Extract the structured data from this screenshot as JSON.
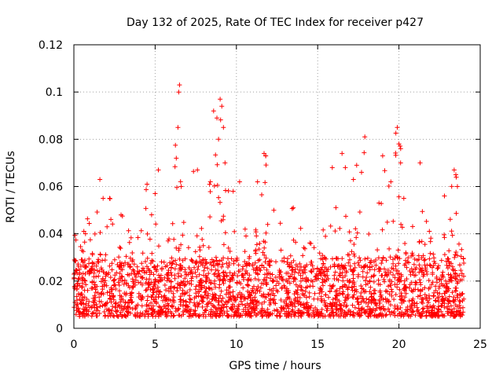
{
  "chart_data": {
    "type": "scatter",
    "title": "Day 132 of 2025, Rate Of TEC Index for receiver p427",
    "xlabel": "GPS time / hours",
    "ylabel": "ROTI / TECUs",
    "xlim": [
      0,
      25
    ],
    "ylim": [
      0,
      0.12
    ],
    "x_ticks": [
      0,
      5,
      10,
      15,
      20,
      25
    ],
    "y_ticks": [
      0,
      0.02,
      0.04,
      0.06,
      0.08,
      0.1,
      0.12
    ],
    "x_tick_labels": [
      "0",
      "5",
      "10",
      "15",
      "20",
      "25"
    ],
    "y_tick_labels": [
      "0",
      "0.02",
      "0.04",
      "0.06",
      "0.08",
      "0.1",
      "0.12"
    ],
    "grid": true,
    "marker": "+",
    "color": "#ff0000",
    "data_span_hours": [
      0,
      24
    ],
    "typical_range": [
      0.005,
      0.03
    ],
    "series": [
      {
        "name": "ROTI",
        "notable_points": [
          {
            "x": 0.5,
            "y": 0.033
          },
          {
            "x": 1.6,
            "y": 0.063
          },
          {
            "x": 1.8,
            "y": 0.055
          },
          {
            "x": 2.2,
            "y": 0.055
          },
          {
            "x": 2.9,
            "y": 0.048
          },
          {
            "x": 4.5,
            "y": 0.061
          },
          {
            "x": 5.0,
            "y": 0.057
          },
          {
            "x": 5.2,
            "y": 0.067
          },
          {
            "x": 6.3,
            "y": 0.072
          },
          {
            "x": 6.4,
            "y": 0.085
          },
          {
            "x": 6.45,
            "y": 0.1
          },
          {
            "x": 6.5,
            "y": 0.103
          },
          {
            "x": 6.6,
            "y": 0.06
          },
          {
            "x": 7.6,
            "y": 0.067
          },
          {
            "x": 8.4,
            "y": 0.062
          },
          {
            "x": 8.6,
            "y": 0.092
          },
          {
            "x": 8.8,
            "y": 0.089
          },
          {
            "x": 8.9,
            "y": 0.08
          },
          {
            "x": 9.0,
            "y": 0.097
          },
          {
            "x": 9.1,
            "y": 0.094
          },
          {
            "x": 9.2,
            "y": 0.085
          },
          {
            "x": 9.3,
            "y": 0.07
          },
          {
            "x": 9.8,
            "y": 0.058
          },
          {
            "x": 10.2,
            "y": 0.062
          },
          {
            "x": 11.3,
            "y": 0.062
          },
          {
            "x": 11.7,
            "y": 0.074
          },
          {
            "x": 11.8,
            "y": 0.073
          },
          {
            "x": 12.3,
            "y": 0.05
          },
          {
            "x": 13.5,
            "y": 0.051
          },
          {
            "x": 15.9,
            "y": 0.068
          },
          {
            "x": 16.5,
            "y": 0.074
          },
          {
            "x": 16.7,
            "y": 0.068
          },
          {
            "x": 17.2,
            "y": 0.063
          },
          {
            "x": 17.4,
            "y": 0.069
          },
          {
            "x": 17.7,
            "y": 0.066
          },
          {
            "x": 17.9,
            "y": 0.081
          },
          {
            "x": 19.0,
            "y": 0.073
          },
          {
            "x": 19.5,
            "y": 0.062
          },
          {
            "x": 19.9,
            "y": 0.085
          },
          {
            "x": 20.0,
            "y": 0.078
          },
          {
            "x": 20.1,
            "y": 0.07
          },
          {
            "x": 20.3,
            "y": 0.055
          },
          {
            "x": 21.3,
            "y": 0.07
          },
          {
            "x": 22.8,
            "y": 0.056
          },
          {
            "x": 23.4,
            "y": 0.067
          },
          {
            "x": 23.5,
            "y": 0.065
          },
          {
            "x": 23.6,
            "y": 0.06
          }
        ]
      }
    ]
  }
}
